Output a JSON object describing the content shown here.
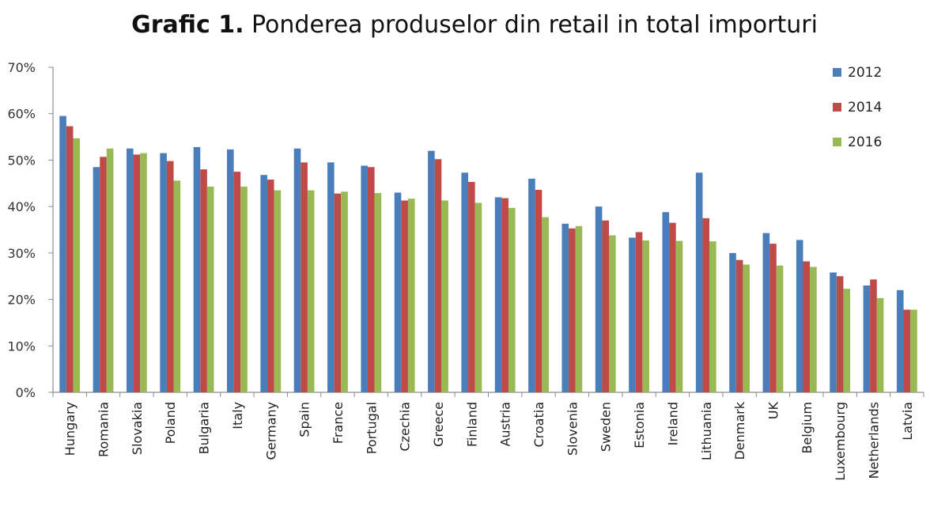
{
  "title_bold": "Grafic 1.",
  "title_rest": "Ponderea produselor din retail in total importuri",
  "chart_data": {
    "type": "bar",
    "title": "Grafic 1. Ponderea produselor din retail in total importuri",
    "xlabel": "",
    "ylabel": "",
    "ylim": [
      0,
      70
    ],
    "yticks": [
      "0%",
      "10%",
      "20%",
      "30%",
      "40%",
      "50%",
      "60%",
      "70%"
    ],
    "grid": false,
    "legend_position": "top-right",
    "categories": [
      "Hungary",
      "Romania",
      "Slovakia",
      "Poland",
      "Bulgaria",
      "Italy",
      "Germany",
      "Spain",
      "France",
      "Portugal",
      "Czechia",
      "Greece",
      "Finland",
      "Austria",
      "Croatia",
      "Slovenia",
      "Sweden",
      "Estonia",
      "Ireland",
      "Lithuania",
      "Denmark",
      "UK",
      "Belgium",
      "Luxembourg",
      "Netherlands",
      "Latvia"
    ],
    "series": [
      {
        "name": "2012",
        "color": "#4a7ebb",
        "values": [
          59.5,
          48.5,
          52.5,
          51.5,
          52.8,
          52.3,
          46.8,
          52.5,
          49.5,
          48.8,
          43.0,
          52.0,
          47.3,
          42.0,
          46.0,
          36.3,
          40.0,
          33.3,
          38.8,
          47.3,
          30.0,
          34.3,
          32.8,
          25.8,
          23.0,
          22.0
        ]
      },
      {
        "name": "2014",
        "color": "#be4b48",
        "values": [
          57.3,
          50.7,
          51.2,
          49.8,
          48.0,
          47.5,
          45.8,
          49.5,
          42.8,
          48.5,
          41.3,
          50.2,
          45.3,
          41.8,
          43.6,
          35.3,
          37.0,
          34.5,
          36.5,
          37.5,
          28.5,
          32.0,
          28.2,
          25.0,
          24.3,
          17.8
        ]
      },
      {
        "name": "2016",
        "color": "#98b954",
        "values": [
          54.7,
          52.5,
          51.5,
          45.6,
          44.3,
          44.3,
          43.5,
          43.5,
          43.2,
          42.9,
          41.7,
          41.3,
          40.8,
          39.7,
          37.7,
          35.8,
          33.8,
          32.7,
          32.6,
          32.5,
          27.5,
          27.3,
          27.0,
          22.3,
          20.3,
          17.8
        ]
      }
    ]
  }
}
